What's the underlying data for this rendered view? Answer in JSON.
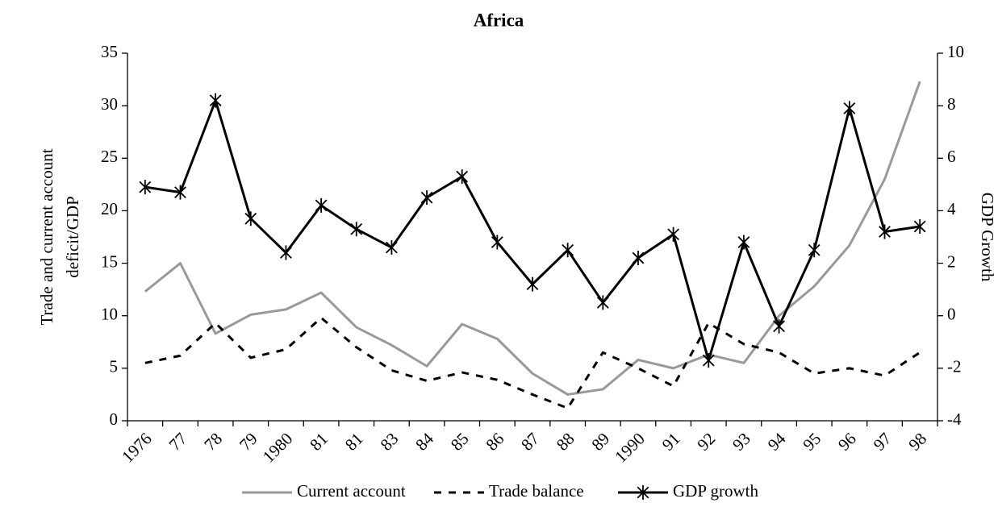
{
  "chart_data": {
    "type": "line",
    "title": "Africa",
    "y_label": [
      "Trade and current account",
      "deficit/GDP"
    ],
    "y2_label": "GDP Growth",
    "categories": [
      "1976",
      "77",
      "78",
      "79",
      "1980",
      "81",
      "81",
      "83",
      "84",
      "85",
      "86",
      "87",
      "88",
      "89",
      "1990",
      "91",
      "92",
      "93",
      "94",
      "95",
      "96",
      "97",
      "98"
    ],
    "series": [
      {
        "name": "Current account",
        "color": "#999999",
        "dashed": false,
        "marker": "none",
        "values": [
          12.3,
          15.0,
          8.3,
          10.1,
          10.6,
          12.2,
          8.9,
          7.2,
          5.2,
          9.2,
          7.8,
          4.5,
          2.5,
          3.0,
          5.8,
          5.0,
          6.3,
          5.5,
          10.0,
          12.8,
          16.7,
          23.0,
          32.3
        ]
      },
      {
        "name": "Trade balance",
        "color": "#000000",
        "dashed": true,
        "marker": "none",
        "values": [
          5.5,
          6.2,
          9.3,
          6.0,
          6.8,
          9.8,
          7.0,
          4.8,
          3.8,
          4.6,
          3.9,
          2.5,
          1.2,
          6.5,
          5.0,
          3.3,
          9.3,
          7.3,
          6.5,
          4.5,
          5.0,
          4.3,
          6.5
        ]
      },
      {
        "name": "GDP growth",
        "color": "#000000",
        "dashed": false,
        "marker": "asterisk",
        "axis": "y2",
        "values": [
          4.9,
          4.7,
          8.2,
          3.7,
          2.4,
          4.2,
          3.3,
          2.6,
          4.5,
          5.3,
          2.8,
          1.2,
          2.5,
          0.5,
          2.2,
          3.1,
          -1.7,
          2.8,
          -0.4,
          2.5,
          7.9,
          3.2,
          3.4
        ]
      }
    ],
    "ylim": [
      0,
      35
    ],
    "yticks": [
      0,
      5,
      10,
      15,
      20,
      25,
      30,
      35
    ],
    "y2lim": [
      -4,
      10
    ],
    "y2ticks": [
      -4,
      -2,
      0,
      2,
      4,
      6,
      8,
      10
    ],
    "grid": false,
    "legend": "bottom"
  }
}
